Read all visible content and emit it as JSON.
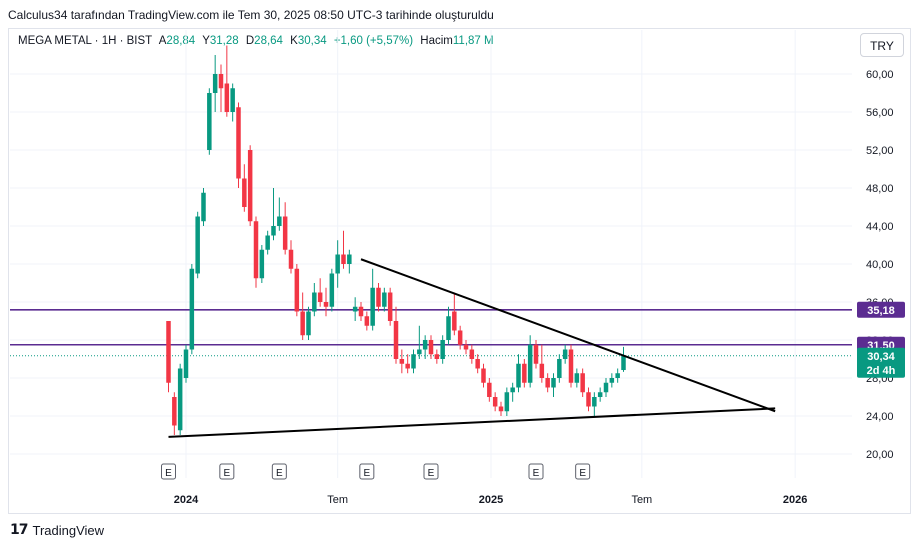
{
  "header": {
    "caption": "Calculus34 tarafından TradingView.com ile Tem 30, 2025 08:50 UTC-3 tarihinde oluşturuldu"
  },
  "legend": {
    "symbol": "MEGA METAL · 1H · BIST",
    "open_label": "A",
    "open": "28,84",
    "high_label": "Y",
    "high": "31,28",
    "low_label": "D",
    "low": "28,64",
    "close_label": "K",
    "close": "30,34",
    "change": "+1,60 (+5,57%)",
    "volume_label": "Hacim",
    "volume": "11,87 M"
  },
  "currency_button": "TRY",
  "footer": {
    "brand": "TradingView",
    "logo": "17"
  },
  "colors": {
    "up": "#089981",
    "down": "#f23645",
    "trendline": "#000000",
    "hline": "#5b2c91",
    "last_price": "#089981"
  },
  "chart_data": {
    "type": "candlestick",
    "y_axis": {
      "min": 18,
      "max": 63,
      "ticks": [
        "20,00",
        "24,00",
        "28,00",
        "32,00",
        "36,00",
        "40,00",
        "44,00",
        "48,00",
        "52,00",
        "56,00",
        "60,00"
      ]
    },
    "x_axis": {
      "labels": [
        "2024",
        "Tem",
        "2025",
        "Tem",
        "2026"
      ]
    },
    "earnings_markers": [
      "E",
      "E",
      "E",
      "E",
      "E",
      "E",
      "E"
    ],
    "horizontal_lines": [
      {
        "value": 35.18,
        "label": "35,18"
      },
      {
        "value": 31.5,
        "label": "31,50"
      }
    ],
    "last_price": {
      "value": 30.34,
      "label": "30,34",
      "countdown": "2d 4h"
    },
    "trendlines": [
      {
        "from": {
          "date": "2024-07-29",
          "price": 40.5
        },
        "to": {
          "date": "2025-12-08",
          "price": 24.5
        }
      },
      {
        "from": {
          "date": "2023-12-11",
          "price": 21.8
        },
        "to": {
          "date": "2025-12-08",
          "price": 24.8
        }
      }
    ],
    "candles": [
      {
        "date": "2023-12-11",
        "o": 34.0,
        "h": 34.0,
        "l": 26.5,
        "c": 27.5
      },
      {
        "date": "2023-12-18",
        "o": 26.0,
        "h": 26.5,
        "l": 22.0,
        "c": 23.0
      },
      {
        "date": "2023-12-25",
        "o": 22.5,
        "h": 29.5,
        "l": 22.0,
        "c": 29.0
      },
      {
        "date": "2024-01-01",
        "o": 28.0,
        "h": 31.5,
        "l": 27.5,
        "c": 31.0
      },
      {
        "date": "2024-01-08",
        "o": 31.0,
        "h": 40.0,
        "l": 30.5,
        "c": 39.5
      },
      {
        "date": "2024-01-15",
        "o": 39.0,
        "h": 45.5,
        "l": 38.5,
        "c": 45.0
      },
      {
        "date": "2024-01-22",
        "o": 44.5,
        "h": 48.0,
        "l": 44.0,
        "c": 47.5
      },
      {
        "date": "2024-01-29",
        "o": 52.0,
        "h": 58.5,
        "l": 51.5,
        "c": 58.0
      },
      {
        "date": "2024-02-05",
        "o": 58.0,
        "h": 62.0,
        "l": 56.0,
        "c": 60.0
      },
      {
        "date": "2024-02-12",
        "o": 60.0,
        "h": 61.0,
        "l": 56.0,
        "c": 58.5
      },
      {
        "date": "2024-02-19",
        "o": 59.0,
        "h": 63.0,
        "l": 55.5,
        "c": 56.0
      },
      {
        "date": "2024-02-26",
        "o": 56.0,
        "h": 59.0,
        "l": 55.0,
        "c": 58.5
      },
      {
        "date": "2024-03-04",
        "o": 56.5,
        "h": 57.0,
        "l": 48.0,
        "c": 49.0
      },
      {
        "date": "2024-03-11",
        "o": 49.0,
        "h": 50.5,
        "l": 45.5,
        "c": 46.0
      },
      {
        "date": "2024-03-18",
        "o": 52.0,
        "h": 52.5,
        "l": 44.0,
        "c": 44.5
      },
      {
        "date": "2024-03-25",
        "o": 44.5,
        "h": 45.0,
        "l": 37.5,
        "c": 38.5
      },
      {
        "date": "2024-04-01",
        "o": 38.5,
        "h": 42.0,
        "l": 38.0,
        "c": 41.5
      },
      {
        "date": "2024-04-08",
        "o": 41.5,
        "h": 43.5,
        "l": 41.0,
        "c": 43.0
      },
      {
        "date": "2024-04-15",
        "o": 43.0,
        "h": 48.0,
        "l": 42.5,
        "c": 44.0
      },
      {
        "date": "2024-04-22",
        "o": 44.0,
        "h": 47.0,
        "l": 43.5,
        "c": 45.0
      },
      {
        "date": "2024-04-29",
        "o": 45.0,
        "h": 46.5,
        "l": 41.0,
        "c": 41.5
      },
      {
        "date": "2024-05-06",
        "o": 41.5,
        "h": 42.5,
        "l": 39.0,
        "c": 39.5
      },
      {
        "date": "2024-05-13",
        "o": 39.5,
        "h": 40.0,
        "l": 34.5,
        "c": 35.0
      },
      {
        "date": "2024-05-20",
        "o": 35.0,
        "h": 37.0,
        "l": 32.0,
        "c": 32.5
      },
      {
        "date": "2024-05-27",
        "o": 32.5,
        "h": 35.5,
        "l": 32.0,
        "c": 35.0
      },
      {
        "date": "2024-06-03",
        "o": 35.0,
        "h": 38.0,
        "l": 34.5,
        "c": 37.0
      },
      {
        "date": "2024-06-10",
        "o": 37.0,
        "h": 38.5,
        "l": 35.5,
        "c": 36.0
      },
      {
        "date": "2024-06-17",
        "o": 36.0,
        "h": 37.5,
        "l": 34.5,
        "c": 35.5
      },
      {
        "date": "2024-06-24",
        "o": 35.5,
        "h": 39.5,
        "l": 35.0,
        "c": 39.0
      },
      {
        "date": "2024-07-01",
        "o": 39.0,
        "h": 42.5,
        "l": 37.5,
        "c": 41.0
      },
      {
        "date": "2024-07-08",
        "o": 41.0,
        "h": 43.5,
        "l": 39.5,
        "c": 40.0
      },
      {
        "date": "2024-07-15",
        "o": 40.0,
        "h": 41.5,
        "l": 39.0,
        "c": 41.0
      },
      {
        "date": "2024-07-22",
        "o": 35.0,
        "h": 36.5,
        "l": 34.0,
        "c": 35.5
      },
      {
        "date": "2024-07-29",
        "o": 35.5,
        "h": 36.0,
        "l": 34.0,
        "c": 34.5
      },
      {
        "date": "2024-08-05",
        "o": 34.5,
        "h": 35.0,
        "l": 33.0,
        "c": 33.5
      },
      {
        "date": "2024-08-12",
        "o": 33.5,
        "h": 39.5,
        "l": 33.0,
        "c": 37.5
      },
      {
        "date": "2024-08-19",
        "o": 37.5,
        "h": 38.0,
        "l": 35.0,
        "c": 35.5
      },
      {
        "date": "2024-08-26",
        "o": 35.5,
        "h": 37.5,
        "l": 35.0,
        "c": 37.0
      },
      {
        "date": "2024-09-02",
        "o": 37.0,
        "h": 37.5,
        "l": 33.5,
        "c": 34.0
      },
      {
        "date": "2024-09-09",
        "o": 34.0,
        "h": 35.5,
        "l": 29.5,
        "c": 30.0
      },
      {
        "date": "2024-09-16",
        "o": 30.0,
        "h": 31.0,
        "l": 28.5,
        "c": 29.5
      },
      {
        "date": "2024-09-23",
        "o": 29.5,
        "h": 30.5,
        "l": 28.5,
        "c": 29.0
      },
      {
        "date": "2024-09-30",
        "o": 29.0,
        "h": 31.0,
        "l": 28.5,
        "c": 30.5
      },
      {
        "date": "2024-10-07",
        "o": 30.5,
        "h": 33.5,
        "l": 30.0,
        "c": 31.0
      },
      {
        "date": "2024-10-14",
        "o": 31.0,
        "h": 32.5,
        "l": 30.0,
        "c": 32.0
      },
      {
        "date": "2024-10-21",
        "o": 32.0,
        "h": 32.5,
        "l": 30.0,
        "c": 30.5
      },
      {
        "date": "2024-10-28",
        "o": 30.5,
        "h": 31.0,
        "l": 29.5,
        "c": 30.0
      },
      {
        "date": "2024-11-04",
        "o": 30.0,
        "h": 32.5,
        "l": 29.5,
        "c": 32.0
      },
      {
        "date": "2024-11-11",
        "o": 32.0,
        "h": 35.5,
        "l": 31.5,
        "c": 34.5
      },
      {
        "date": "2024-11-18",
        "o": 35.0,
        "h": 37.0,
        "l": 32.5,
        "c": 33.0
      },
      {
        "date": "2024-11-25",
        "o": 33.0,
        "h": 33.5,
        "l": 31.0,
        "c": 31.5
      },
      {
        "date": "2024-12-02",
        "o": 31.5,
        "h": 32.0,
        "l": 30.5,
        "c": 31.0
      },
      {
        "date": "2024-12-09",
        "o": 31.0,
        "h": 31.5,
        "l": 29.5,
        "c": 30.0
      },
      {
        "date": "2024-12-16",
        "o": 30.0,
        "h": 30.5,
        "l": 28.5,
        "c": 29.0
      },
      {
        "date": "2024-12-23",
        "o": 29.0,
        "h": 29.5,
        "l": 27.0,
        "c": 27.5
      },
      {
        "date": "2024-12-30",
        "o": 27.5,
        "h": 28.0,
        "l": 25.5,
        "c": 26.0
      },
      {
        "date": "2025-01-06",
        "o": 26.0,
        "h": 26.5,
        "l": 24.5,
        "c": 25.0
      },
      {
        "date": "2025-01-13",
        "o": 25.0,
        "h": 25.5,
        "l": 24.0,
        "c": 24.5
      },
      {
        "date": "2025-01-20",
        "o": 24.5,
        "h": 27.0,
        "l": 24.0,
        "c": 26.5
      },
      {
        "date": "2025-01-27",
        "o": 26.5,
        "h": 27.5,
        "l": 25.5,
        "c": 27.0
      },
      {
        "date": "2025-02-03",
        "o": 27.0,
        "h": 30.5,
        "l": 26.5,
        "c": 29.5
      },
      {
        "date": "2025-02-10",
        "o": 29.5,
        "h": 30.0,
        "l": 27.0,
        "c": 27.5
      },
      {
        "date": "2025-02-17",
        "o": 27.5,
        "h": 32.5,
        "l": 27.0,
        "c": 31.5
      },
      {
        "date": "2025-02-24",
        "o": 31.5,
        "h": 32.0,
        "l": 29.0,
        "c": 29.5
      },
      {
        "date": "2025-03-03",
        "o": 29.5,
        "h": 31.5,
        "l": 27.5,
        "c": 28.0
      },
      {
        "date": "2025-03-10",
        "o": 28.0,
        "h": 28.5,
        "l": 26.5,
        "c": 27.0
      },
      {
        "date": "2025-03-17",
        "o": 27.0,
        "h": 28.5,
        "l": 26.0,
        "c": 28.0
      },
      {
        "date": "2025-03-24",
        "o": 28.0,
        "h": 30.5,
        "l": 27.5,
        "c": 30.0
      },
      {
        "date": "2025-03-31",
        "o": 30.0,
        "h": 31.5,
        "l": 29.5,
        "c": 31.0
      },
      {
        "date": "2025-04-07",
        "o": 31.0,
        "h": 31.5,
        "l": 27.0,
        "c": 27.5
      },
      {
        "date": "2025-04-14",
        "o": 27.5,
        "h": 29.0,
        "l": 27.0,
        "c": 28.5
      },
      {
        "date": "2025-04-21",
        "o": 28.5,
        "h": 29.0,
        "l": 26.0,
        "c": 26.5
      },
      {
        "date": "2025-04-28",
        "o": 26.5,
        "h": 27.0,
        "l": 24.5,
        "c": 25.0
      },
      {
        "date": "2025-05-05",
        "o": 25.0,
        "h": 26.5,
        "l": 24.0,
        "c": 26.0
      },
      {
        "date": "2025-05-12",
        "o": 26.0,
        "h": 27.0,
        "l": 25.5,
        "c": 26.5
      },
      {
        "date": "2025-05-19",
        "o": 26.5,
        "h": 28.0,
        "l": 26.0,
        "c": 27.5
      },
      {
        "date": "2025-05-26",
        "o": 27.5,
        "h": 28.5,
        "l": 27.0,
        "c": 28.0
      },
      {
        "date": "2025-06-02",
        "o": 28.0,
        "h": 29.0,
        "l": 27.5,
        "c": 28.5
      },
      {
        "date": "2025-06-09",
        "o": 28.84,
        "h": 31.28,
        "l": 28.64,
        "c": 30.34
      }
    ]
  }
}
